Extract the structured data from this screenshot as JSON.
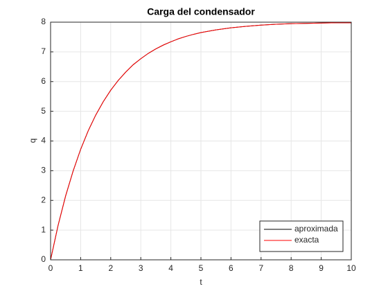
{
  "chart_data": {
    "type": "line",
    "title": "Carga del condensador",
    "x_label": "t",
    "y_label": "q",
    "x": [
      0,
      0.25,
      0.5,
      0.75,
      1,
      1.25,
      1.5,
      1.75,
      2,
      2.25,
      2.5,
      2.75,
      3,
      3.25,
      3.5,
      3.75,
      4,
      4.25,
      4.5,
      4.75,
      5,
      5.5,
      6,
      6.5,
      7,
      7.5,
      8,
      8.5,
      9,
      9.5,
      10
    ],
    "series": [
      {
        "name": "aproximada",
        "color": "#000000",
        "values": [
          0,
          1.16,
          2.15,
          2.99,
          3.72,
          4.34,
          4.87,
          5.32,
          5.71,
          6.04,
          6.32,
          6.57,
          6.77,
          6.95,
          7.1,
          7.23,
          7.34,
          7.44,
          7.52,
          7.59,
          7.65,
          7.74,
          7.81,
          7.86,
          7.9,
          7.93,
          7.95,
          7.96,
          7.97,
          7.98,
          7.98
        ]
      },
      {
        "name": "exacta",
        "color": "#ff0000",
        "values": [
          0,
          1.16,
          2.15,
          2.99,
          3.72,
          4.34,
          4.87,
          5.32,
          5.71,
          6.04,
          6.32,
          6.57,
          6.77,
          6.95,
          7.1,
          7.23,
          7.34,
          7.44,
          7.52,
          7.59,
          7.65,
          7.74,
          7.81,
          7.86,
          7.9,
          7.93,
          7.95,
          7.96,
          7.97,
          7.98,
          7.98
        ]
      }
    ],
    "xlim": [
      0,
      10
    ],
    "xticks": [
      0,
      1,
      2,
      3,
      4,
      5,
      6,
      7,
      8,
      9,
      10
    ],
    "ylim": [
      0,
      8
    ],
    "yticks": [
      0,
      1,
      2,
      3,
      4,
      5,
      6,
      7,
      8
    ],
    "grid": true,
    "legend_position": "southeast"
  }
}
